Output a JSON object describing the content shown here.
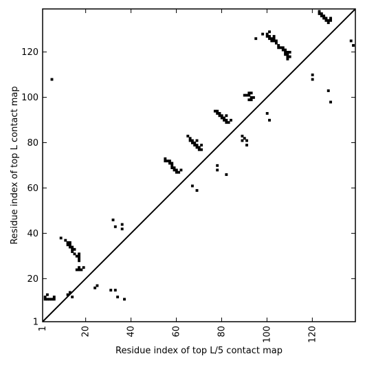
{
  "chart_data": {
    "type": "scatter",
    "title": "",
    "xlabel": "Residue index of top L/5 contact map",
    "ylabel": "Residue index of top L contact map",
    "xlim": [
      1,
      139
    ],
    "ylim": [
      1,
      139
    ],
    "xticks": [
      1,
      20,
      40,
      60,
      80,
      100,
      120
    ],
    "yticks": [
      1,
      20,
      40,
      60,
      80,
      100,
      120
    ],
    "tick_labels_x": [
      "1",
      "20",
      "40",
      "60",
      "80",
      "100",
      "120"
    ],
    "tick_labels_y": [
      "1",
      "20",
      "40",
      "60",
      "80",
      "100",
      "120"
    ],
    "tick_rotation_x": -90,
    "grid": false,
    "diagonal_line": true,
    "marker": "square",
    "marker_color": "#000000",
    "series": [
      {
        "values": [
          [
            2,
            12
          ],
          [
            2,
            11
          ],
          [
            3,
            11
          ],
          [
            4,
            11
          ],
          [
            5,
            11
          ],
          [
            6,
            11
          ],
          [
            6,
            12
          ],
          [
            3,
            13
          ],
          [
            12,
            13
          ],
          [
            13,
            14
          ],
          [
            14,
            12
          ],
          [
            9,
            38
          ],
          [
            11,
            37
          ],
          [
            12,
            36
          ],
          [
            12,
            35
          ],
          [
            13,
            36
          ],
          [
            13,
            35
          ],
          [
            13,
            34
          ],
          [
            14,
            34
          ],
          [
            14,
            33
          ],
          [
            15,
            33
          ],
          [
            14,
            32
          ],
          [
            15,
            31
          ],
          [
            16,
            30
          ],
          [
            17,
            31
          ],
          [
            17,
            30
          ],
          [
            17,
            29
          ],
          [
            17,
            28
          ],
          [
            17,
            25
          ],
          [
            17,
            24
          ],
          [
            18,
            24
          ],
          [
            16,
            24
          ],
          [
            19,
            25
          ],
          [
            24,
            16
          ],
          [
            25,
            17
          ],
          [
            31,
            15
          ],
          [
            33,
            15
          ],
          [
            34,
            12
          ],
          [
            37,
            11
          ],
          [
            32,
            46
          ],
          [
            33,
            43
          ],
          [
            36,
            44
          ],
          [
            36,
            42
          ],
          [
            5,
            108
          ],
          [
            55,
            73
          ],
          [
            55,
            72
          ],
          [
            56,
            72
          ],
          [
            57,
            72
          ],
          [
            57,
            71
          ],
          [
            58,
            71
          ],
          [
            58,
            70
          ],
          [
            58,
            69
          ],
          [
            59,
            69
          ],
          [
            59,
            68
          ],
          [
            60,
            68
          ],
          [
            60,
            67
          ],
          [
            61,
            67
          ],
          [
            62,
            68
          ],
          [
            65,
            83
          ],
          [
            66,
            82
          ],
          [
            66,
            81
          ],
          [
            67,
            81
          ],
          [
            67,
            80
          ],
          [
            68,
            80
          ],
          [
            68,
            79
          ],
          [
            69,
            79
          ],
          [
            69,
            78
          ],
          [
            69,
            81
          ],
          [
            70,
            78
          ],
          [
            70,
            77
          ],
          [
            71,
            77
          ],
          [
            71,
            79
          ],
          [
            67,
            61
          ],
          [
            69,
            59
          ],
          [
            77,
            94
          ],
          [
            78,
            94
          ],
          [
            78,
            93
          ],
          [
            79,
            93
          ],
          [
            79,
            92
          ],
          [
            80,
            92
          ],
          [
            80,
            91
          ],
          [
            81,
            91
          ],
          [
            81,
            90
          ],
          [
            82,
            90
          ],
          [
            82,
            89
          ],
          [
            83,
            89
          ],
          [
            84,
            90
          ],
          [
            82,
            92
          ],
          [
            78,
            70
          ],
          [
            78,
            68
          ],
          [
            82,
            66
          ],
          [
            89,
            83
          ],
          [
            89,
            81
          ],
          [
            90,
            82
          ],
          [
            91,
            81
          ],
          [
            91,
            79
          ],
          [
            90,
            101
          ],
          [
            91,
            101
          ],
          [
            92,
            102
          ],
          [
            92,
            101
          ],
          [
            93,
            100
          ],
          [
            93,
            99
          ],
          [
            94,
            100
          ],
          [
            93,
            102
          ],
          [
            92,
            99
          ],
          [
            95,
            126
          ],
          [
            98,
            128
          ],
          [
            100,
            128
          ],
          [
            100,
            127
          ],
          [
            101,
            127
          ],
          [
            101,
            126
          ],
          [
            101,
            129
          ],
          [
            102,
            126
          ],
          [
            102,
            125
          ],
          [
            103,
            127
          ],
          [
            103,
            126
          ],
          [
            103,
            125
          ],
          [
            104,
            125
          ],
          [
            104,
            124
          ],
          [
            105,
            123
          ],
          [
            105,
            122
          ],
          [
            106,
            122
          ],
          [
            107,
            122
          ],
          [
            107,
            121
          ],
          [
            108,
            121
          ],
          [
            108,
            120
          ],
          [
            108,
            119
          ],
          [
            109,
            120
          ],
          [
            109,
            119
          ],
          [
            109,
            118
          ],
          [
            109,
            117
          ],
          [
            110,
            120
          ],
          [
            110,
            118
          ],
          [
            100,
            93
          ],
          [
            101,
            90
          ],
          [
            120,
            110
          ],
          [
            120,
            108
          ],
          [
            123,
            138
          ],
          [
            123,
            137
          ],
          [
            124,
            137
          ],
          [
            124,
            136
          ],
          [
            125,
            136
          ],
          [
            125,
            135
          ],
          [
            126,
            135
          ],
          [
            126,
            134
          ],
          [
            127,
            134
          ],
          [
            127,
            133
          ],
          [
            128,
            134
          ],
          [
            128,
            135
          ],
          [
            127,
            103
          ],
          [
            128,
            98
          ],
          [
            137,
            125
          ],
          [
            138,
            123
          ]
        ]
      }
    ]
  }
}
